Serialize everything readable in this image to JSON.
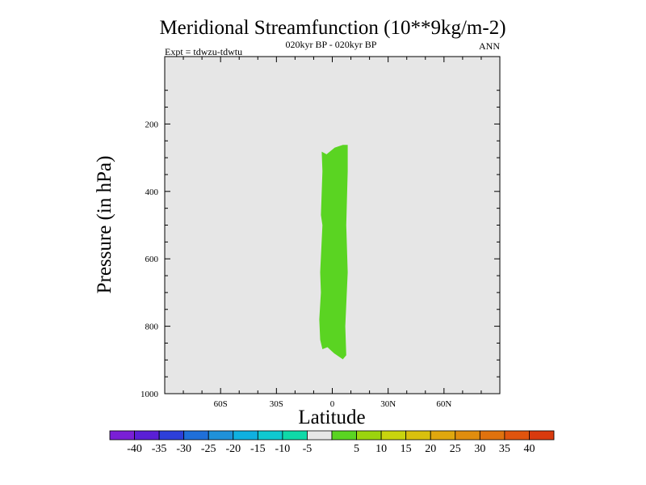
{
  "chart_data": {
    "type": "contour",
    "title": "Meridional Streamfunction (10**9kg/m-2)",
    "subtitle_center": "020kyr BP - 020kyr BP",
    "subtitle_left": "Expt = tdwzu-tdwtu",
    "subtitle_right": "ANN",
    "xlabel": "Latitude",
    "ylabel": "Pressure (in hPa)",
    "xlim": [
      -90,
      90
    ],
    "ylim": [
      1000,
      0
    ],
    "y_reversed": true,
    "x_ticks": [
      {
        "value": -60,
        "label": "60S"
      },
      {
        "value": -30,
        "label": "30S"
      },
      {
        "value": 0,
        "label": "0"
      },
      {
        "value": 30,
        "label": "30N"
      },
      {
        "value": 60,
        "label": "60N"
      }
    ],
    "y_ticks": [
      {
        "value": 200,
        "label": "200"
      },
      {
        "value": 400,
        "label": "400"
      },
      {
        "value": 600,
        "label": "600"
      },
      {
        "value": 800,
        "label": "800"
      },
      {
        "value": 1000,
        "label": "1000"
      }
    ],
    "background_color": "#e6e6e6",
    "regions": [
      {
        "level_range": [
          5,
          10
        ],
        "color": "#5ad422",
        "outline": [
          [
            -5.7,
            282
          ],
          [
            -3.1,
            290
          ],
          [
            1.3,
            270
          ],
          [
            5.7,
            262
          ],
          [
            8.3,
            262
          ],
          [
            8.3,
            340
          ],
          [
            7.5,
            500
          ],
          [
            8.3,
            640
          ],
          [
            7.0,
            800
          ],
          [
            7.5,
            886
          ],
          [
            5.7,
            898
          ],
          [
            0.9,
            880
          ],
          [
            -2.6,
            862
          ],
          [
            -5.3,
            868
          ],
          [
            -6.5,
            840
          ],
          [
            -7.0,
            780
          ],
          [
            -6.1,
            700
          ],
          [
            -6.5,
            640
          ],
          [
            -5.3,
            500
          ],
          [
            -6.1,
            470
          ],
          [
            -5.3,
            340
          ]
        ]
      }
    ],
    "colorbar": {
      "colors": [
        "#7a1fd6",
        "#5a1fd6",
        "#2d3fd9",
        "#1f6fd9",
        "#1f91d9",
        "#0fb0e0",
        "#0fc8d0",
        "#0fd9a8",
        "#e6e6e6",
        "#5ad422",
        "#9bd40e",
        "#c8d40e",
        "#d9c00e",
        "#e0a70e",
        "#e08d0e",
        "#e0720e",
        "#e0540e",
        "#d93a0e"
      ],
      "labels": [
        "-40",
        "-35",
        "-30",
        "-25",
        "-20",
        "-15",
        "-10",
        "-5",
        "5",
        "10",
        "15",
        "20",
        "25",
        "30",
        "35",
        "40"
      ]
    }
  }
}
